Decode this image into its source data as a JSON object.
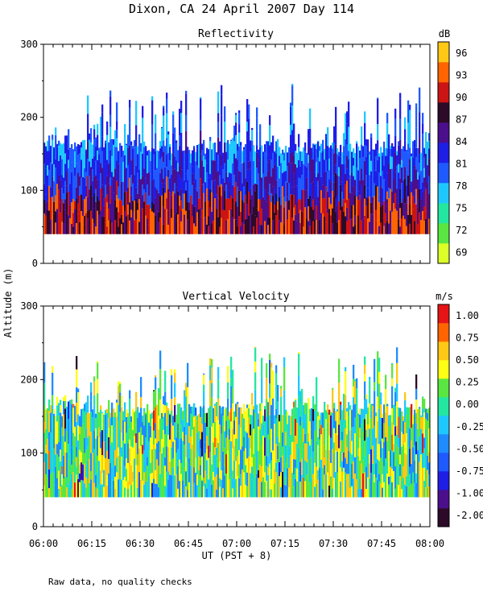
{
  "figure": {
    "title": "Dixon, CA 24 April 2007  Day 114",
    "ylabel": "Altitude (m)",
    "xlabel": "UT  (PST + 8)",
    "footnote": "Raw data, no quality checks"
  },
  "chart_data": [
    {
      "type": "heatmap",
      "title": "Reflectivity",
      "colorbar_unit": "dB",
      "ylim": [
        0,
        300
      ],
      "yticks": [
        "0",
        "100",
        "200",
        "300"
      ],
      "xlim": [
        "06:00",
        "08:00"
      ],
      "colorbar_ticks": [
        "69",
        "72",
        "75",
        "78",
        "81",
        "84",
        "87",
        "90",
        "93",
        "96"
      ],
      "colorbar_colors": [
        "#dcff28",
        "#5ae640",
        "#23e6a0",
        "#1ec8ff",
        "#1e5aff",
        "#1e1ee6",
        "#4b0f8c",
        "#2d0a28",
        "#cc1414",
        "#ff6400",
        "#ffc814"
      ],
      "data_min_altitude": 40,
      "data_max_altitude": 280
    },
    {
      "type": "heatmap",
      "title": "Vertical Velocity",
      "colorbar_unit": "m/s",
      "ylim": [
        0,
        300
      ],
      "yticks": [
        "0",
        "100",
        "200",
        "300"
      ],
      "xlim": [
        "06:00",
        "08:00"
      ],
      "colorbar_ticks": [
        "-2.00",
        "-1.00",
        "-0.75",
        "-0.50",
        "-0.25",
        "0.00",
        "0.25",
        "0.50",
        "0.75",
        "1.00"
      ],
      "colorbar_colors": [
        "#2d0a28",
        "#4b0f8c",
        "#1e1ee6",
        "#1e5aff",
        "#1e8cff",
        "#1ec8ff",
        "#23e6a0",
        "#5ae640",
        "#ffff14",
        "#ffc814",
        "#ff6400",
        "#e61414"
      ],
      "data_min_altitude": 40,
      "data_max_altitude": 280
    }
  ],
  "time_axis": {
    "ticks": [
      "06:00",
      "06:15",
      "06:30",
      "06:45",
      "07:00",
      "07:15",
      "07:30",
      "07:45",
      "08:00"
    ]
  }
}
